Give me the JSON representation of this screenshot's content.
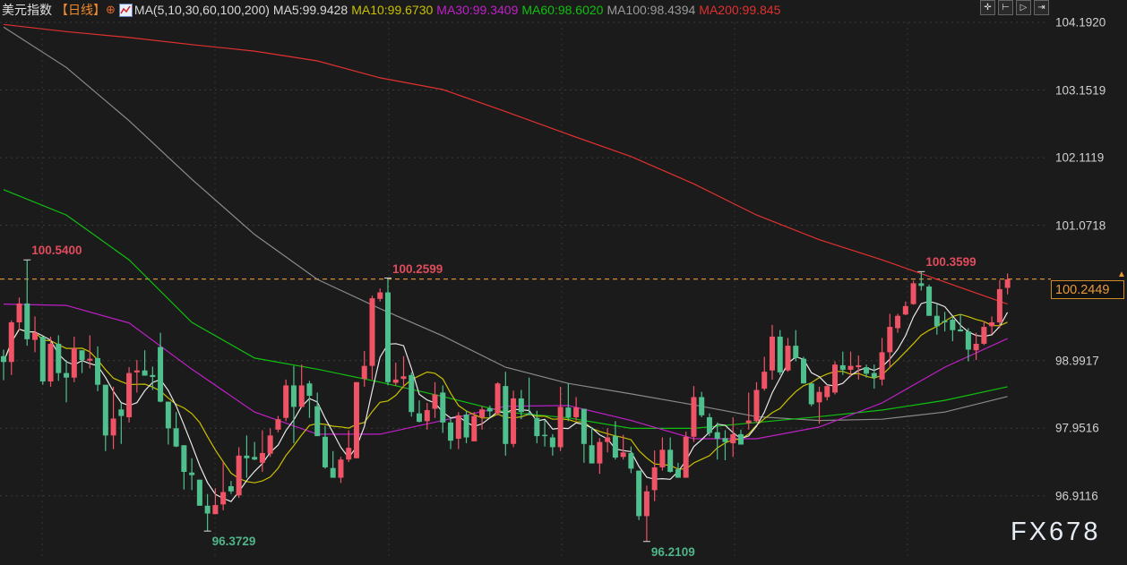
{
  "header": {
    "title": "美元指数",
    "period": "【日线】",
    "period_icon": "crosshair-circle-icon",
    "ma_icon": "ma-chart-icon",
    "ma_label": "MA(5,10,30,60,100,200)",
    "ma5": "MA5:99.9428",
    "ma10": "MA10:99.6730",
    "ma30": "MA30:99.3409",
    "ma60": "MA60:98.6020",
    "ma100": "MA100:98.4394",
    "ma200": "MA200:99.845"
  },
  "toolbar": [
    {
      "icon": "crosshair-icon"
    },
    {
      "icon": "zoom-range-icon"
    },
    {
      "icon": "play-forward-icon"
    },
    {
      "icon": "exit-icon"
    }
  ],
  "watermark": "FX678",
  "colors": {
    "background": "#1b1b1b",
    "up": "#ef5366",
    "down": "#4fc08d",
    "ma5": "#e8e8e8",
    "ma10": "#c8c000",
    "ma30": "#c020c8",
    "ma60": "#10c010",
    "ma100": "#8a8a8a",
    "ma200": "#e03030",
    "current_price": "#e89a3a"
  },
  "chart_data": {
    "type": "candlestick",
    "title": "",
    "ylim": [
      96.1,
      104.26
    ],
    "grid": true,
    "y_ticks": [
      "104.1920",
      "103.1519",
      "102.1119",
      "101.0718",
      "98.9917",
      "97.9516",
      "96.9116"
    ],
    "current_price": "100.2449",
    "candles_ohlc": [
      [
        99.06,
        99.16,
        98.69,
        98.97
      ],
      [
        98.97,
        99.61,
        98.77,
        99.58
      ],
      [
        99.58,
        99.96,
        99.45,
        99.87
      ],
      [
        99.87,
        100.54,
        99.22,
        99.32
      ],
      [
        99.31,
        99.67,
        99.12,
        99.42
      ],
      [
        99.36,
        99.36,
        98.62,
        98.67
      ],
      [
        98.67,
        99.36,
        98.59,
        99.25
      ],
      [
        99.25,
        99.38,
        98.68,
        98.8
      ],
      [
        98.8,
        99.0,
        98.35,
        98.73
      ],
      [
        98.73,
        99.36,
        98.66,
        99.18
      ],
      [
        99.15,
        99.15,
        98.8,
        99.0
      ],
      [
        98.99,
        99.38,
        98.87,
        99.02
      ],
      [
        99.03,
        99.21,
        98.52,
        98.62
      ],
      [
        98.62,
        98.62,
        97.6,
        97.84
      ],
      [
        97.84,
        98.59,
        97.63,
        98.1
      ],
      [
        98.24,
        98.34,
        97.71,
        98.14
      ],
      [
        98.12,
        98.89,
        98.04,
        98.8
      ],
      [
        98.81,
        99.0,
        98.5,
        98.84
      ],
      [
        98.84,
        99.15,
        98.76,
        98.76
      ],
      [
        98.77,
        98.9,
        98.54,
        98.74
      ],
      [
        99.2,
        99.42,
        98.35,
        98.36
      ],
      [
        98.36,
        98.36,
        97.7,
        97.95
      ],
      [
        97.95,
        98.2,
        97.66,
        97.67
      ],
      [
        97.69,
        97.69,
        97.01,
        97.28
      ],
      [
        97.27,
        97.49,
        97.0,
        97.23
      ],
      [
        97.16,
        97.16,
        96.76,
        96.76
      ],
      [
        96.76,
        96.94,
        96.37,
        96.64
      ],
      [
        96.63,
        97.03,
        96.63,
        96.77
      ],
      [
        96.78,
        97.43,
        96.69,
        96.97
      ],
      [
        97.06,
        97.14,
        96.94,
        96.98
      ],
      [
        96.92,
        97.66,
        96.88,
        97.53
      ],
      [
        97.53,
        97.84,
        97.19,
        97.49
      ],
      [
        97.51,
        97.74,
        97.46,
        97.47
      ],
      [
        97.42,
        97.92,
        97.28,
        97.57
      ],
      [
        97.56,
        97.95,
        97.51,
        97.84
      ],
      [
        97.93,
        98.14,
        97.89,
        98.09
      ],
      [
        98.11,
        98.7,
        98.06,
        98.61
      ],
      [
        98.61,
        98.91,
        97.72,
        98.28
      ],
      [
        98.28,
        98.93,
        98.27,
        98.61
      ],
      [
        98.64,
        98.68,
        98.11,
        98.45
      ],
      [
        98.29,
        98.5,
        97.83,
        97.83
      ],
      [
        97.82,
        97.99,
        97.33,
        97.35
      ],
      [
        97.34,
        97.6,
        97.19,
        97.19
      ],
      [
        97.19,
        97.51,
        97.11,
        97.47
      ],
      [
        97.47,
        97.92,
        97.43,
        97.65
      ],
      [
        97.49,
        98.66,
        97.49,
        98.66
      ],
      [
        98.71,
        99.14,
        98.59,
        98.91
      ],
      [
        98.91,
        99.99,
        98.7,
        99.95
      ],
      [
        99.94,
        100.1,
        99.9,
        100.04
      ],
      [
        100.04,
        100.26,
        98.61,
        98.66
      ],
      [
        98.65,
        98.96,
        98.61,
        98.7
      ],
      [
        98.71,
        99.06,
        98.57,
        98.75
      ],
      [
        98.77,
        98.81,
        98.13,
        98.2
      ],
      [
        98.18,
        98.38,
        98.04,
        98.05
      ],
      [
        98.06,
        98.34,
        97.93,
        98.23
      ],
      [
        98.25,
        98.66,
        98.11,
        98.47
      ],
      [
        98.5,
        98.61,
        97.88,
        98.04
      ],
      [
        98.04,
        98.11,
        97.63,
        97.76
      ],
      [
        97.79,
        98.2,
        97.63,
        98.15
      ],
      [
        98.16,
        98.22,
        97.72,
        97.81
      ],
      [
        97.75,
        98.2,
        97.75,
        98.14
      ],
      [
        98.12,
        98.29,
        97.93,
        98.24
      ],
      [
        98.26,
        98.3,
        98.12,
        98.21
      ],
      [
        98.18,
        98.66,
        98.15,
        98.64
      ],
      [
        98.6,
        98.82,
        97.53,
        97.71
      ],
      [
        97.71,
        98.53,
        97.66,
        98.41
      ],
      [
        98.41,
        98.54,
        98.09,
        98.2
      ],
      [
        98.18,
        98.73,
        98.15,
        98.16
      ],
      [
        98.11,
        98.22,
        97.72,
        97.83
      ],
      [
        97.85,
        98.08,
        97.67,
        97.84
      ],
      [
        97.81,
        97.86,
        97.53,
        97.66
      ],
      [
        97.66,
        98.59,
        97.6,
        98.28
      ],
      [
        98.27,
        98.64,
        98.06,
        98.12
      ],
      [
        98.12,
        98.43,
        98.07,
        98.27
      ],
      [
        98.25,
        98.25,
        97.42,
        97.71
      ],
      [
        97.69,
        97.97,
        97.41,
        97.41
      ],
      [
        97.41,
        97.8,
        97.25,
        97.74
      ],
      [
        97.74,
        97.95,
        97.58,
        97.81
      ],
      [
        97.83,
        98.06,
        97.47,
        97.5
      ],
      [
        97.51,
        97.85,
        97.47,
        97.58
      ],
      [
        97.57,
        97.67,
        97.26,
        97.33
      ],
      [
        97.3,
        97.3,
        96.54,
        96.6
      ],
      [
        96.6,
        97.07,
        96.21,
        96.98
      ],
      [
        97.0,
        97.61,
        96.83,
        97.35
      ],
      [
        97.35,
        97.81,
        97.3,
        97.62
      ],
      [
        97.62,
        97.81,
        97.27,
        97.28
      ],
      [
        97.32,
        97.42,
        97.19,
        97.19
      ],
      [
        97.19,
        97.9,
        97.19,
        97.82
      ],
      [
        97.82,
        98.6,
        97.74,
        98.43
      ],
      [
        98.43,
        98.51,
        98.12,
        98.15
      ],
      [
        98.12,
        98.18,
        97.83,
        97.88
      ],
      [
        97.89,
        98.04,
        97.47,
        97.79
      ],
      [
        97.8,
        97.92,
        97.46,
        97.74
      ],
      [
        97.72,
        98.12,
        97.51,
        97.86
      ],
      [
        97.86,
        97.93,
        97.7,
        97.7
      ],
      [
        98.03,
        98.5,
        97.93,
        98.07
      ],
      [
        98.06,
        98.66,
        98.03,
        98.54
      ],
      [
        98.56,
        99.05,
        98.53,
        98.82
      ],
      [
        98.84,
        99.54,
        98.7,
        99.36
      ],
      [
        99.36,
        99.46,
        98.77,
        98.81
      ],
      [
        98.84,
        99.34,
        98.82,
        99.22
      ],
      [
        99.22,
        99.46,
        98.98,
        99.03
      ],
      [
        99.02,
        99.05,
        98.64,
        98.64
      ],
      [
        98.64,
        98.64,
        98.29,
        98.32
      ],
      [
        98.35,
        98.59,
        98.02,
        98.51
      ],
      [
        98.43,
        98.62,
        98.38,
        98.6
      ],
      [
        98.5,
        98.98,
        98.47,
        98.93
      ],
      [
        98.92,
        99.13,
        98.77,
        98.85
      ],
      [
        98.85,
        99.13,
        98.74,
        98.91
      ],
      [
        98.89,
        99.07,
        98.7,
        98.92
      ],
      [
        98.89,
        98.93,
        98.73,
        98.79
      ],
      [
        98.8,
        98.93,
        98.56,
        98.73
      ],
      [
        98.7,
        99.34,
        98.61,
        99.12
      ],
      [
        99.12,
        99.71,
        98.89,
        99.51
      ],
      [
        99.49,
        99.71,
        99.42,
        99.68
      ],
      [
        99.7,
        99.9,
        99.69,
        99.83
      ],
      [
        99.86,
        100.22,
        99.85,
        100.18
      ],
      [
        100.18,
        100.36,
        100.07,
        100.14
      ],
      [
        100.13,
        100.16,
        99.68,
        99.68
      ],
      [
        99.68,
        99.87,
        99.39,
        99.52
      ],
      [
        99.6,
        99.74,
        99.44,
        99.58
      ],
      [
        99.62,
        99.67,
        99.29,
        99.46
      ],
      [
        99.47,
        99.71,
        99.44,
        99.44
      ],
      [
        99.44,
        99.49,
        98.98,
        99.16
      ],
      [
        99.15,
        99.42,
        99.0,
        99.25
      ],
      [
        99.25,
        99.6,
        99.23,
        99.51
      ],
      [
        99.52,
        99.67,
        99.4,
        99.58
      ],
      [
        99.58,
        100.23,
        99.49,
        100.09
      ],
      [
        100.11,
        100.33,
        100.01,
        100.24
      ]
    ],
    "moving_averages": {
      "sample_every_n_candles": 8,
      "ma30": [
        99.86,
        99.84,
        99.57,
        98.86,
        98.2,
        97.86,
        97.86,
        98.07,
        98.29,
        98.3,
        98.07,
        97.79,
        97.79,
        97.97,
        98.34,
        98.89,
        99.33
      ],
      "ma60": [
        101.62,
        101.23,
        100.54,
        99.58,
        99.03,
        98.86,
        98.66,
        98.44,
        98.2,
        98.11,
        97.95,
        97.95,
        98.04,
        98.13,
        98.23,
        98.38,
        98.59
      ],
      "ma100": [
        104.12,
        103.5,
        102.68,
        101.78,
        100.93,
        100.24,
        99.79,
        99.37,
        98.89,
        98.64,
        98.48,
        98.31,
        98.13,
        98.07,
        98.09,
        98.2,
        98.44
      ],
      "ma200": [
        104.16,
        104.05,
        103.96,
        103.85,
        103.75,
        103.6,
        103.34,
        103.16,
        102.82,
        102.47,
        102.13,
        101.71,
        101.23,
        100.85,
        100.54,
        100.2,
        99.86
      ]
    },
    "annotations": [
      {
        "text": "100.5400",
        "candle": 4,
        "kind": "high"
      },
      {
        "text": "96.3729",
        "candle": 27,
        "kind": "low"
      },
      {
        "text": "100.2599",
        "candle": 50,
        "kind": "high"
      },
      {
        "text": "96.2109",
        "candle": 83,
        "kind": "low"
      },
      {
        "text": "100.3599",
        "candle": 118,
        "kind": "high"
      }
    ]
  }
}
